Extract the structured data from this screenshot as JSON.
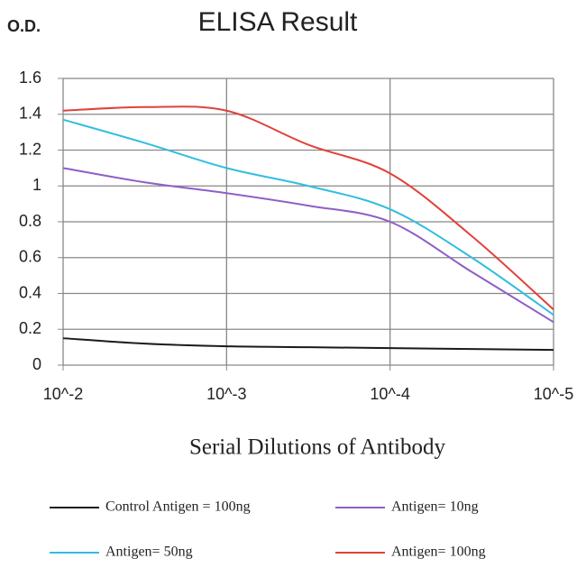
{
  "chart_data": {
    "type": "line",
    "title": "ELISA Result",
    "y_label": "O.D.",
    "x_label": "Serial Dilutions of Antibody",
    "categories": [
      "10^-2",
      null,
      "10^-3",
      null,
      "10^-4",
      null,
      "10^-5"
    ],
    "series": [
      {
        "name": "Control Antigen = 100ng",
        "color": "#1a1a1a",
        "values": [
          0.15,
          0.12,
          0.105,
          0.1,
          0.095,
          0.09,
          0.085
        ]
      },
      {
        "name": "Antigen= 10ng",
        "color": "#8e5fc6",
        "values": [
          1.1,
          1.02,
          0.96,
          0.89,
          0.8,
          0.52,
          0.24
        ]
      },
      {
        "name": "Antigen= 50ng",
        "color": "#33bde0",
        "values": [
          1.37,
          1.24,
          1.1,
          1.0,
          0.87,
          0.6,
          0.28
        ]
      },
      {
        "name": "Antigen= 100ng",
        "color": "#e0413b",
        "values": [
          1.42,
          1.44,
          1.42,
          1.23,
          1.07,
          0.72,
          0.31
        ]
      }
    ],
    "ylim": [
      0,
      1.6
    ],
    "yticks": [
      0,
      0.2,
      0.4,
      0.6,
      0.8,
      1,
      1.2,
      1.4,
      1.6
    ],
    "grid": true
  }
}
